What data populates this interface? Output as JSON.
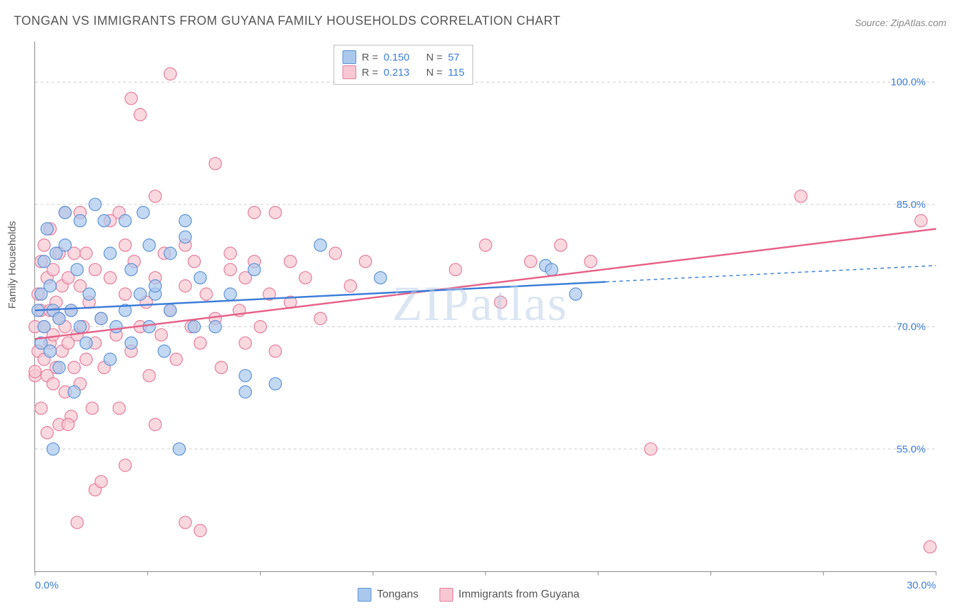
{
  "title": "TONGAN VS IMMIGRANTS FROM GUYANA FAMILY HOUSEHOLDS CORRELATION CHART",
  "source": "Source: ZipAtlas.com",
  "watermark": "ZIPatlas",
  "ylabel": "Family Households",
  "chart": {
    "type": "scatter-with-regression",
    "background_color": "#ffffff",
    "grid_color": "#cccccc",
    "axis_color": "#888888",
    "xlim": [
      0,
      30
    ],
    "ylim": [
      40,
      105
    ],
    "y_gridlines": [
      55.0,
      70.0,
      85.0,
      100.0
    ],
    "y_tick_labels": [
      "55.0%",
      "70.0%",
      "85.0%",
      "100.0%"
    ],
    "x_tick_positions": [
      0,
      3.75,
      7.5,
      11.25,
      15,
      18.75,
      22.5,
      26.25,
      30
    ],
    "x_tick_labels": {
      "0": "0.0%",
      "30": "30.0%"
    },
    "tick_fontsize": 15,
    "tick_color": "#3b7dd8",
    "label_fontsize": 15,
    "series": [
      {
        "name": "Tongans",
        "marker_fill": "#a9c8ec",
        "marker_stroke": "#5a91d6",
        "marker_opacity": 0.7,
        "marker_radius": 9,
        "line_color": "#3b7dd8",
        "line_width": 2.5,
        "r_value": "0.150",
        "n_value": "57",
        "regression": {
          "x1": 0,
          "y1": 72.0,
          "x2_solid": 19.0,
          "y2_solid": 75.5,
          "x2_dash": 30,
          "y2_dash": 77.5
        },
        "points": [
          [
            0.1,
            72
          ],
          [
            0.2,
            68
          ],
          [
            0.2,
            74
          ],
          [
            0.3,
            70
          ],
          [
            0.3,
            78
          ],
          [
            0.4,
            82
          ],
          [
            0.5,
            67
          ],
          [
            0.5,
            75
          ],
          [
            0.6,
            55
          ],
          [
            0.6,
            72
          ],
          [
            0.7,
            79
          ],
          [
            0.8,
            71
          ],
          [
            0.8,
            65
          ],
          [
            1.0,
            80
          ],
          [
            1.0,
            84
          ],
          [
            1.2,
            72
          ],
          [
            1.3,
            62
          ],
          [
            1.4,
            77
          ],
          [
            1.5,
            70
          ],
          [
            1.5,
            83
          ],
          [
            1.7,
            68
          ],
          [
            1.8,
            74
          ],
          [
            2.0,
            85
          ],
          [
            2.2,
            71
          ],
          [
            2.3,
            83
          ],
          [
            2.5,
            66
          ],
          [
            2.5,
            79
          ],
          [
            2.7,
            70
          ],
          [
            3.0,
            83
          ],
          [
            3.0,
            72
          ],
          [
            3.2,
            68
          ],
          [
            3.2,
            77
          ],
          [
            3.5,
            74
          ],
          [
            3.6,
            84
          ],
          [
            3.8,
            70
          ],
          [
            3.8,
            80
          ],
          [
            4.0,
            74
          ],
          [
            4.0,
            75
          ],
          [
            4.3,
            67
          ],
          [
            4.5,
            79
          ],
          [
            4.5,
            72
          ],
          [
            4.8,
            55
          ],
          [
            5.0,
            81
          ],
          [
            5.0,
            83
          ],
          [
            5.3,
            70
          ],
          [
            5.5,
            76
          ],
          [
            6.0,
            70
          ],
          [
            6.5,
            74
          ],
          [
            7.0,
            64
          ],
          [
            7.0,
            62
          ],
          [
            7.3,
            77
          ],
          [
            8.0,
            63
          ],
          [
            9.5,
            80
          ],
          [
            11.5,
            76
          ],
          [
            17.0,
            77.5
          ],
          [
            17.2,
            77
          ],
          [
            18.0,
            74
          ]
        ]
      },
      {
        "name": "Immigrants from Guyana",
        "marker_fill": "#f7c8d3",
        "marker_stroke": "#e47a99",
        "marker_opacity": 0.7,
        "marker_radius": 9,
        "line_color": "#e66088",
        "line_width": 2.5,
        "r_value": "0.213",
        "n_value": "115",
        "regression": {
          "x1": 0,
          "y1": 68.5,
          "x2_solid": 30,
          "y2_solid": 82.0
        },
        "points": [
          [
            0.0,
            64
          ],
          [
            0.0,
            64.5
          ],
          [
            0.0,
            70
          ],
          [
            0.1,
            67
          ],
          [
            0.1,
            74
          ],
          [
            0.2,
            60
          ],
          [
            0.2,
            72
          ],
          [
            0.2,
            78
          ],
          [
            0.3,
            66
          ],
          [
            0.3,
            70
          ],
          [
            0.3,
            80
          ],
          [
            0.4,
            64
          ],
          [
            0.4,
            76
          ],
          [
            0.5,
            68
          ],
          [
            0.5,
            72
          ],
          [
            0.5,
            82
          ],
          [
            0.6,
            63
          ],
          [
            0.6,
            69
          ],
          [
            0.6,
            77
          ],
          [
            0.7,
            65
          ],
          [
            0.7,
            73
          ],
          [
            0.8,
            58
          ],
          [
            0.8,
            71
          ],
          [
            0.8,
            79
          ],
          [
            0.9,
            67
          ],
          [
            0.9,
            75
          ],
          [
            1.0,
            62
          ],
          [
            1.0,
            70
          ],
          [
            1.0,
            84
          ],
          [
            1.1,
            68
          ],
          [
            1.1,
            76
          ],
          [
            1.2,
            59
          ],
          [
            1.2,
            72
          ],
          [
            1.3,
            65
          ],
          [
            1.3,
            79
          ],
          [
            1.4,
            69
          ],
          [
            1.4,
            46
          ],
          [
            1.5,
            63
          ],
          [
            1.5,
            75
          ],
          [
            1.5,
            84
          ],
          [
            1.6,
            70
          ],
          [
            1.7,
            66
          ],
          [
            1.7,
            79
          ],
          [
            1.8,
            73
          ],
          [
            1.9,
            60
          ],
          [
            2.0,
            68
          ],
          [
            2.0,
            77
          ],
          [
            2.0,
            50
          ],
          [
            2.2,
            71
          ],
          [
            2.3,
            65
          ],
          [
            2.5,
            76
          ],
          [
            2.5,
            83
          ],
          [
            2.7,
            69
          ],
          [
            2.8,
            60
          ],
          [
            3.0,
            74
          ],
          [
            3.0,
            80
          ],
          [
            3.0,
            53
          ],
          [
            3.2,
            67
          ],
          [
            3.3,
            78
          ],
          [
            3.5,
            70
          ],
          [
            3.5,
            96
          ],
          [
            3.7,
            73
          ],
          [
            3.8,
            64
          ],
          [
            4.0,
            76
          ],
          [
            4.0,
            58
          ],
          [
            4.0,
            86
          ],
          [
            4.2,
            69
          ],
          [
            4.3,
            79
          ],
          [
            4.5,
            72
          ],
          [
            4.5,
            101
          ],
          [
            4.7,
            66
          ],
          [
            5.0,
            75
          ],
          [
            5.0,
            80
          ],
          [
            5.0,
            46
          ],
          [
            5.2,
            70
          ],
          [
            5.3,
            78
          ],
          [
            5.5,
            45
          ],
          [
            5.5,
            68
          ],
          [
            5.7,
            74
          ],
          [
            6.0,
            90
          ],
          [
            6.0,
            71
          ],
          [
            6.2,
            65
          ],
          [
            6.5,
            79
          ],
          [
            6.5,
            77
          ],
          [
            6.8,
            72
          ],
          [
            7.0,
            76
          ],
          [
            7.0,
            68
          ],
          [
            7.3,
            84
          ],
          [
            7.3,
            78
          ],
          [
            7.5,
            70
          ],
          [
            7.8,
            74
          ],
          [
            8.0,
            84
          ],
          [
            8.0,
            67
          ],
          [
            8.5,
            78
          ],
          [
            8.5,
            73
          ],
          [
            9.0,
            76
          ],
          [
            9.5,
            71
          ],
          [
            10.0,
            79
          ],
          [
            10.5,
            75
          ],
          [
            11.0,
            78
          ],
          [
            14.0,
            77
          ],
          [
            15.0,
            80
          ],
          [
            15.5,
            73
          ],
          [
            16.5,
            78
          ],
          [
            17.5,
            80
          ],
          [
            18.5,
            78
          ],
          [
            20.5,
            55
          ],
          [
            25.5,
            86
          ],
          [
            29.5,
            83
          ],
          [
            29.8,
            43
          ],
          [
            3.2,
            98
          ],
          [
            2.2,
            51
          ],
          [
            2.8,
            84
          ],
          [
            1.1,
            58
          ],
          [
            0.4,
            57
          ]
        ]
      }
    ]
  },
  "legend_top": {
    "label_r": "R =",
    "label_n": "N ="
  },
  "legend_bottom": {
    "items": [
      "Tongans",
      "Immigrants from Guyana"
    ]
  }
}
